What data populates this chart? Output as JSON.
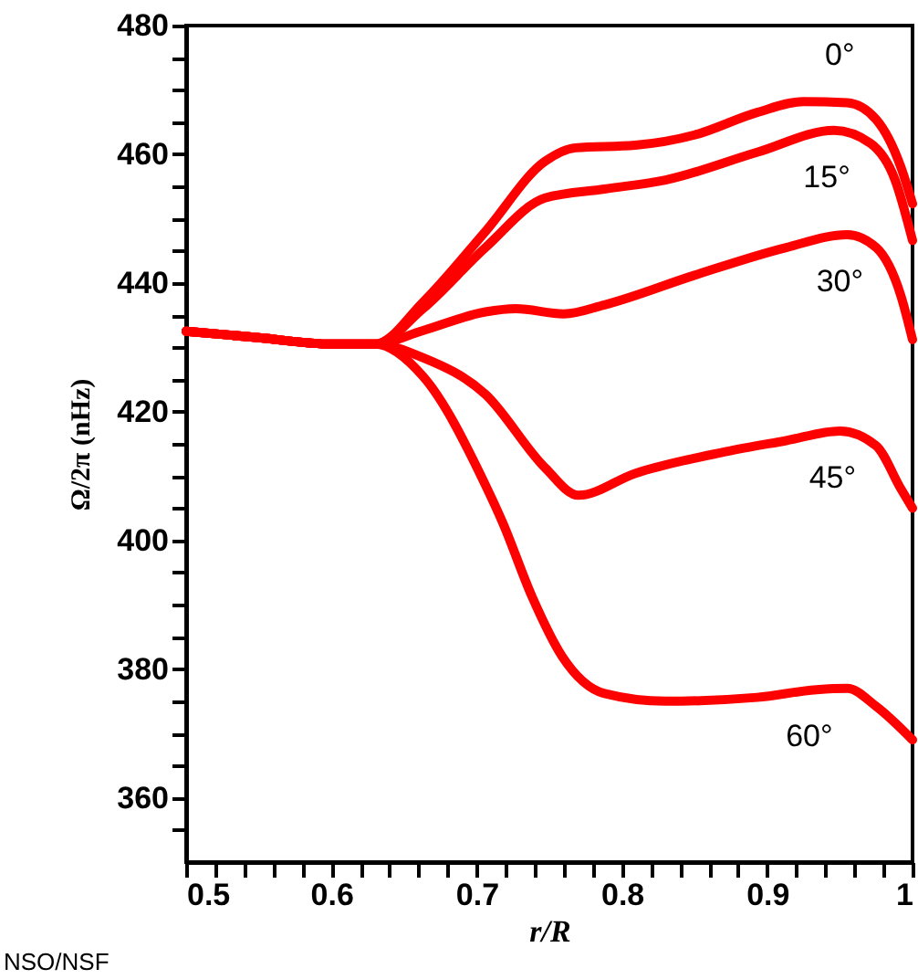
{
  "chart_data": {
    "type": "line",
    "xlabel": "r/R",
    "ylabel": "Ω/2π (nHz)",
    "xlim": [
      0.5,
      1.0
    ],
    "ylim": [
      350,
      480
    ],
    "xticks": [
      0.5,
      {
        "value": 0.52,
        "label": null
      },
      {
        "value": 0.54,
        "label": null
      },
      {
        "value": 0.56,
        "label": null
      },
      {
        "value": 0.58,
        "label": null
      },
      0.6,
      {
        "value": 0.62,
        "label": null
      },
      {
        "value": 0.64,
        "label": null
      },
      {
        "value": 0.66,
        "label": null
      },
      {
        "value": 0.68,
        "label": null
      },
      0.7,
      {
        "value": 0.72,
        "label": null
      },
      {
        "value": 0.74,
        "label": null
      },
      {
        "value": 0.76,
        "label": null
      },
      {
        "value": 0.78,
        "label": null
      },
      0.8,
      {
        "value": 0.82,
        "label": null
      },
      {
        "value": 0.84,
        "label": null
      },
      {
        "value": 0.86,
        "label": null
      },
      {
        "value": 0.88,
        "label": null
      },
      0.9,
      {
        "value": 0.92,
        "label": null
      },
      {
        "value": 0.94,
        "label": null
      },
      {
        "value": 0.96,
        "label": null
      },
      {
        "value": 0.98,
        "label": null
      },
      1
    ],
    "yticks": [
      {
        "value": 355,
        "label": null
      },
      360,
      {
        "value": 365,
        "label": null
      },
      {
        "value": 370,
        "label": null
      },
      {
        "value": 375,
        "label": null
      },
      380,
      {
        "value": 385,
        "label": null
      },
      {
        "value": 390,
        "label": null
      },
      {
        "value": 395,
        "label": null
      },
      400,
      {
        "value": 405,
        "label": null
      },
      {
        "value": 410,
        "label": null
      },
      {
        "value": 415,
        "label": null
      },
      420,
      {
        "value": 425,
        "label": null
      },
      {
        "value": 430,
        "label": null
      },
      {
        "value": 435,
        "label": null
      },
      440,
      {
        "value": 445,
        "label": null
      },
      {
        "value": 450,
        "label": null
      },
      {
        "value": 455,
        "label": null
      },
      460,
      {
        "value": 465,
        "label": null
      },
      {
        "value": 470,
        "label": null
      },
      {
        "value": 475,
        "label": null
      },
      480
    ],
    "grid": false,
    "marker": "none",
    "line_style": "solid",
    "annotations": [
      "NSO/NSF"
    ],
    "series": [
      {
        "name": "0°",
        "color": "#ff0000",
        "x": [
          0.5,
          0.55,
          0.6,
          0.63,
          0.663,
          0.706,
          0.747,
          0.768,
          0.809,
          0.85,
          0.893,
          0.925,
          0.955,
          0.975,
          0.992,
          1.0
        ],
        "values": [
          432.5,
          431.5,
          430.5,
          430.5,
          437,
          448,
          458.9,
          461,
          461.4,
          463,
          466.5,
          468.2,
          468,
          465.4,
          458,
          452.3
        ]
      },
      {
        "name": "15°",
        "color": "#ff0000",
        "x": [
          0.5,
          0.55,
          0.6,
          0.63,
          0.663,
          0.706,
          0.747,
          0.788,
          0.83,
          0.893,
          0.946,
          0.971,
          0.988,
          1.0
        ],
        "values": [
          432.5,
          431.5,
          430.5,
          430.5,
          436,
          445.5,
          453.2,
          454.6,
          456,
          460.3,
          463.7,
          461.7,
          456,
          446.6
        ]
      },
      {
        "name": "30°",
        "color": "#ff0000",
        "x": [
          0.5,
          0.55,
          0.6,
          0.63,
          0.663,
          0.706,
          0.727,
          0.76,
          0.788,
          0.85,
          0.913,
          0.955,
          0.975,
          0.992,
          1.0
        ],
        "values": [
          432.5,
          431.5,
          430.5,
          430.5,
          432.6,
          435.5,
          436,
          435.2,
          436.6,
          441.2,
          445.5,
          447.5,
          445.5,
          438,
          431.2
        ]
      },
      {
        "name": "45°",
        "color": "#ff0000",
        "x": [
          0.5,
          0.55,
          0.6,
          0.63,
          0.663,
          0.706,
          0.747,
          0.77,
          0.809,
          0.872,
          0.913,
          0.95,
          0.975,
          0.992,
          1.0
        ],
        "values": [
          432.5,
          431.5,
          430.5,
          430.5,
          428.4,
          422.7,
          411.3,
          407,
          410.4,
          413.8,
          415.5,
          417,
          414.7,
          408,
          405
        ]
      },
      {
        "name": "60°",
        "color": "#ff0000",
        "x": [
          0.5,
          0.55,
          0.6,
          0.63,
          0.663,
          0.706,
          0.718,
          0.738,
          0.759,
          0.788,
          0.83,
          0.893,
          0.934,
          0.955,
          0.975,
          1.0
        ],
        "values": [
          432.5,
          431.5,
          430.5,
          430.5,
          425.5,
          408.6,
          402.7,
          391.3,
          381.9,
          376.2,
          375,
          375.6,
          376.8,
          377,
          374.2,
          369
        ]
      }
    ]
  }
}
